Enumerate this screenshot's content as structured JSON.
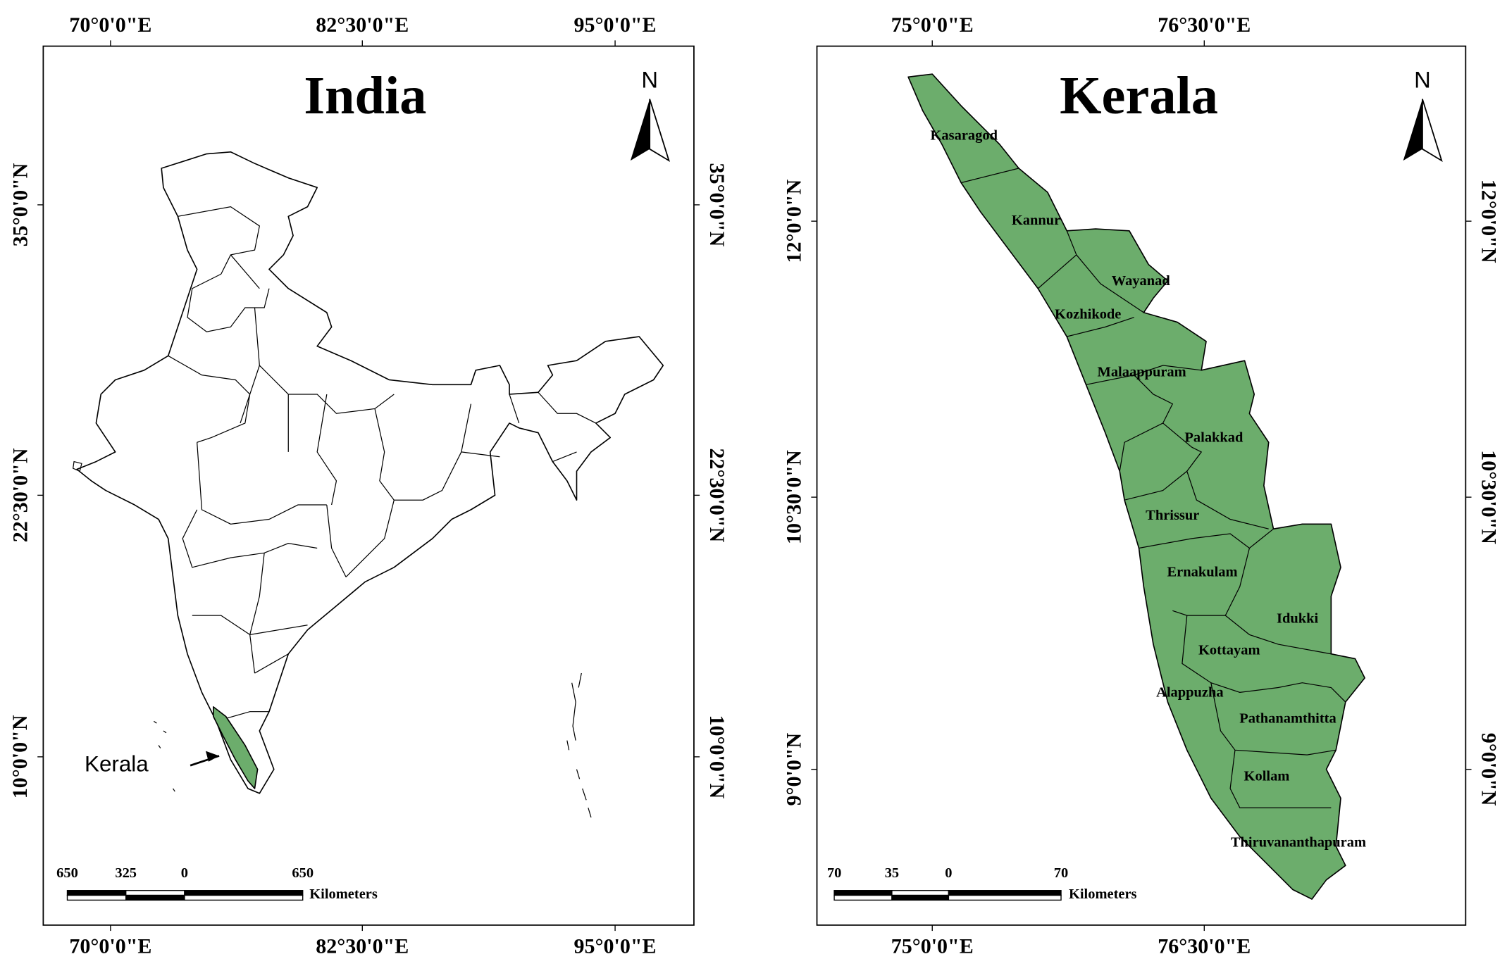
{
  "panels": [
    {
      "title": "India",
      "north": "N",
      "lon_labels": [
        "70°0'0\"E",
        "82°30'0\"E",
        "95°0'0\"E"
      ],
      "lat_labels": [
        "35°0'0\"N",
        "22°30'0\"N",
        "10°0'0\"N"
      ],
      "scale_labels": [
        "650",
        "325",
        "0",
        "650"
      ],
      "scale_unit": "Kilometers",
      "callout": "Kerala"
    },
    {
      "title": "Kerala",
      "north": "N",
      "lon_labels": [
        "75°0'0\"E",
        "76°30'0\"E"
      ],
      "lat_labels": [
        "12°0'0\"N",
        "10°30'0\"N",
        "9°0'0\"N"
      ],
      "scale_labels": [
        "70",
        "35",
        "0",
        "70"
      ],
      "scale_unit": "Kilometers",
      "districts": [
        "Kasaragod",
        "Kannur",
        "Wayanad",
        "Kozhikode",
        "Malaappuram",
        "Palakkad",
        "Thrissur",
        "Ernakulam",
        "Idukki",
        "Kottayam",
        "Alappuzha",
        "Pathanamthitta",
        "Kollam",
        "Thiruvananthapuram"
      ]
    }
  ]
}
